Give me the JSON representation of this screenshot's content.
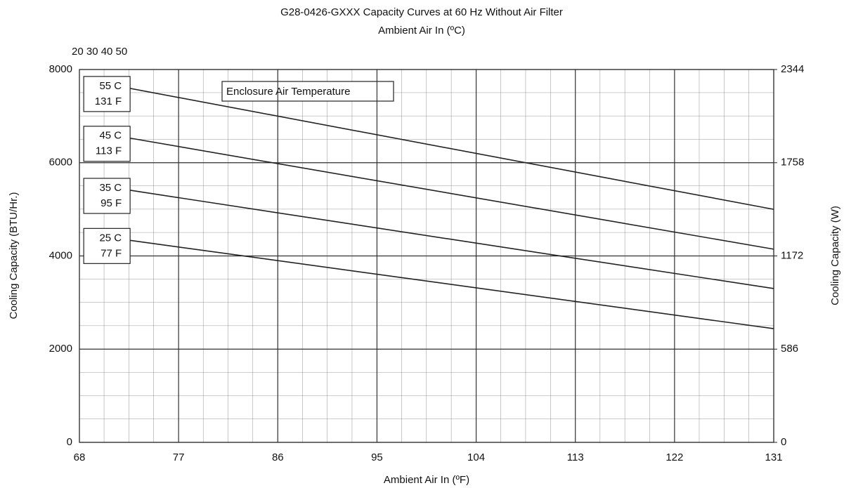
{
  "chart_data": {
    "type": "line",
    "title": "G28-0426-GXXX Capacity Curves at 60 Hz Without Air Filter",
    "subtitle": "Ambient Air In (ºC)",
    "top_axis_label": "20 30 40 50",
    "x_label": "Ambient Air In (ºF)",
    "y_label": "Cooling Capacity (BTU/Hr.)",
    "y2_label": "Cooling Capacity (W)",
    "annotation": "Enclosure Air Temperature",
    "x": [
      72.6,
      131
    ],
    "xlim": [
      68,
      131
    ],
    "xticks": [
      68,
      77,
      86,
      95,
      104,
      113,
      122,
      131
    ],
    "ylim": [
      0,
      8000
    ],
    "yticks": [
      0,
      2000,
      4000,
      6000,
      8000
    ],
    "y2lim": [
      0,
      2344
    ],
    "y2ticks": [
      0,
      586,
      1172,
      1758,
      2344
    ],
    "grid": true,
    "series": [
      {
        "name": "55 C",
        "name_f": "131 F",
        "color": "#222222",
        "values": [
          7595,
          5000
        ]
      },
      {
        "name": "45 C",
        "name_f": "113 F",
        "color": "#222222",
        "values": [
          6527,
          4145
        ]
      },
      {
        "name": "35 C",
        "name_f": "95 F",
        "color": "#222222",
        "values": [
          5409,
          3300
        ]
      },
      {
        "name": "25 C",
        "name_f": "77 F",
        "color": "#222222",
        "values": [
          4334,
          2440
        ]
      }
    ]
  }
}
